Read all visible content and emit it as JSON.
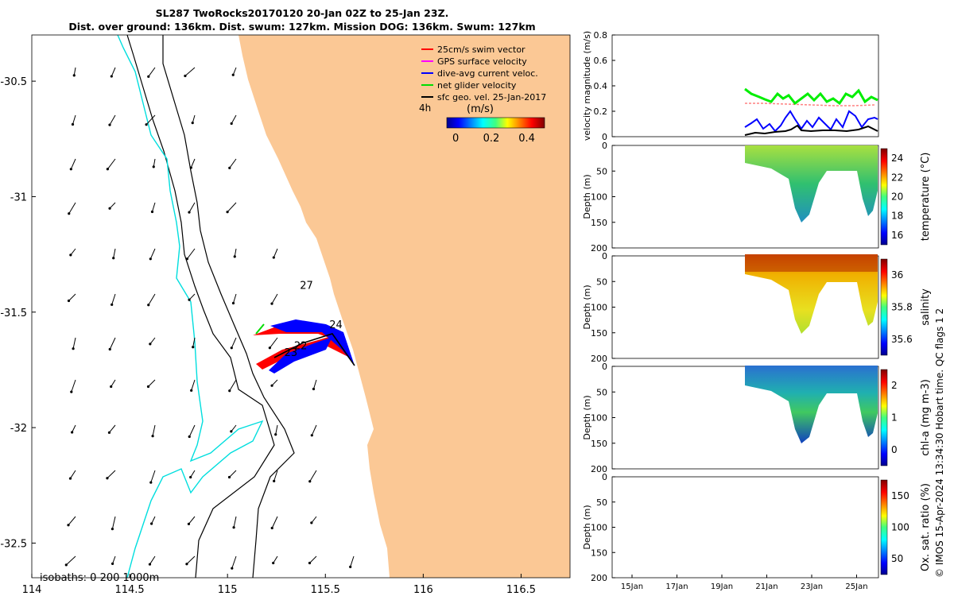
{
  "title": {
    "line1": "SL287 TwoRocks20170120 20-Jan 02Z to 25-Jan 23Z.",
    "line2": "Dist. over ground: 136km. Dist. swum: 127km. Mission DOG: 136km. Swum: 127km"
  },
  "map": {
    "xlim": [
      114,
      116.75
    ],
    "ylim": [
      -32.65,
      -30.3
    ],
    "x_ticks": [
      114,
      114.5,
      115,
      115.5,
      116,
      116.5
    ],
    "x_tick_labels": [
      "114",
      "114.5",
      "115",
      "115.5",
      "116",
      "116.5"
    ],
    "y_ticks": [
      -30.5,
      -31,
      -31.5,
      -32,
      -32.5
    ],
    "y_tick_labels": [
      "-30.5",
      "-31",
      "-31.5",
      "-32",
      "-32.5"
    ],
    "legend": {
      "entries": [
        {
          "label": "25cm/s swim vector",
          "color": "#ff0000"
        },
        {
          "label": "GPS surface velocity",
          "color": "#ff00ff"
        },
        {
          "label": "dive-avg current veloc.",
          "color": "#0000ff"
        },
        {
          "label": "net glider velocity",
          "color": "#00dd00"
        },
        {
          "label": "sfc geo. vel. 25-Jan-2017",
          "color": "#000000"
        }
      ],
      "scale_label": "4h"
    },
    "colorbar": {
      "title": "(m/s)",
      "ticks": [
        "0",
        "0.2",
        "0.4"
      ],
      "range": [
        -0.05,
        0.5
      ]
    },
    "isobath_label": "isobaths: 0   200  1000m",
    "day_labels": [
      {
        "text": "27",
        "lon": 115.37,
        "lat": -31.4
      },
      {
        "text": "24",
        "lon": 115.52,
        "lat": -31.57
      },
      {
        "text": "22",
        "lon": 115.34,
        "lat": -31.66
      },
      {
        "text": "23",
        "lon": 115.29,
        "lat": -31.69
      }
    ],
    "colors": {
      "land": "#fbc895",
      "isobath_shallow": "#00dede",
      "isobath": "#000000"
    }
  },
  "profiles": {
    "time_ticks": [
      "15Jan",
      "17Jan",
      "19Jan",
      "21Jan",
      "23Jan",
      "25Jan"
    ],
    "panels": [
      {
        "name": "velocity",
        "ylabel": "velocity magnitude (m/s)",
        "yticks": [
          "0",
          "0.2",
          "0.4",
          "0.6",
          "0.8"
        ],
        "series": [
          {
            "name": "net glider velocity",
            "color": "#00ee00"
          },
          {
            "name": "dive-avg current",
            "color": "#0000ff"
          },
          {
            "name": "sfc geo. vel.",
            "color": "#000000"
          },
          {
            "name": "25cm/s swim vector",
            "color": "#ff8080"
          }
        ]
      },
      {
        "name": "temperature",
        "ylabel": "Depth (m)",
        "yticks": [
          "0",
          "50",
          "100",
          "150",
          "200"
        ],
        "cbar_label": "temperature (°C)",
        "cbar_ticks": [
          "24",
          "22",
          "20",
          "18",
          "16"
        ]
      },
      {
        "name": "salinity",
        "ylabel": "Depth (m)",
        "yticks": [
          "0",
          "50",
          "100",
          "150",
          "200"
        ],
        "cbar_label": "salinity",
        "cbar_ticks": [
          "36",
          "35.8",
          "35.6"
        ]
      },
      {
        "name": "chla",
        "ylabel": "Depth (m)",
        "yticks": [
          "0",
          "50",
          "100",
          "150",
          "200"
        ],
        "cbar_label": "chl-a (mg m-3)",
        "cbar_ticks": [
          "2",
          "1",
          "0"
        ]
      },
      {
        "name": "oxygen",
        "ylabel": "Depth (m)",
        "yticks": [
          "0",
          "50",
          "100",
          "150",
          "200"
        ],
        "cbar_label": "Ox. sat. ratio (%)",
        "cbar_ticks": [
          "150",
          "100",
          "50"
        ]
      }
    ]
  },
  "footer": "© IMOS 15-Apr-2024 13:34:30 Hobart time. QC flags 1  2"
}
